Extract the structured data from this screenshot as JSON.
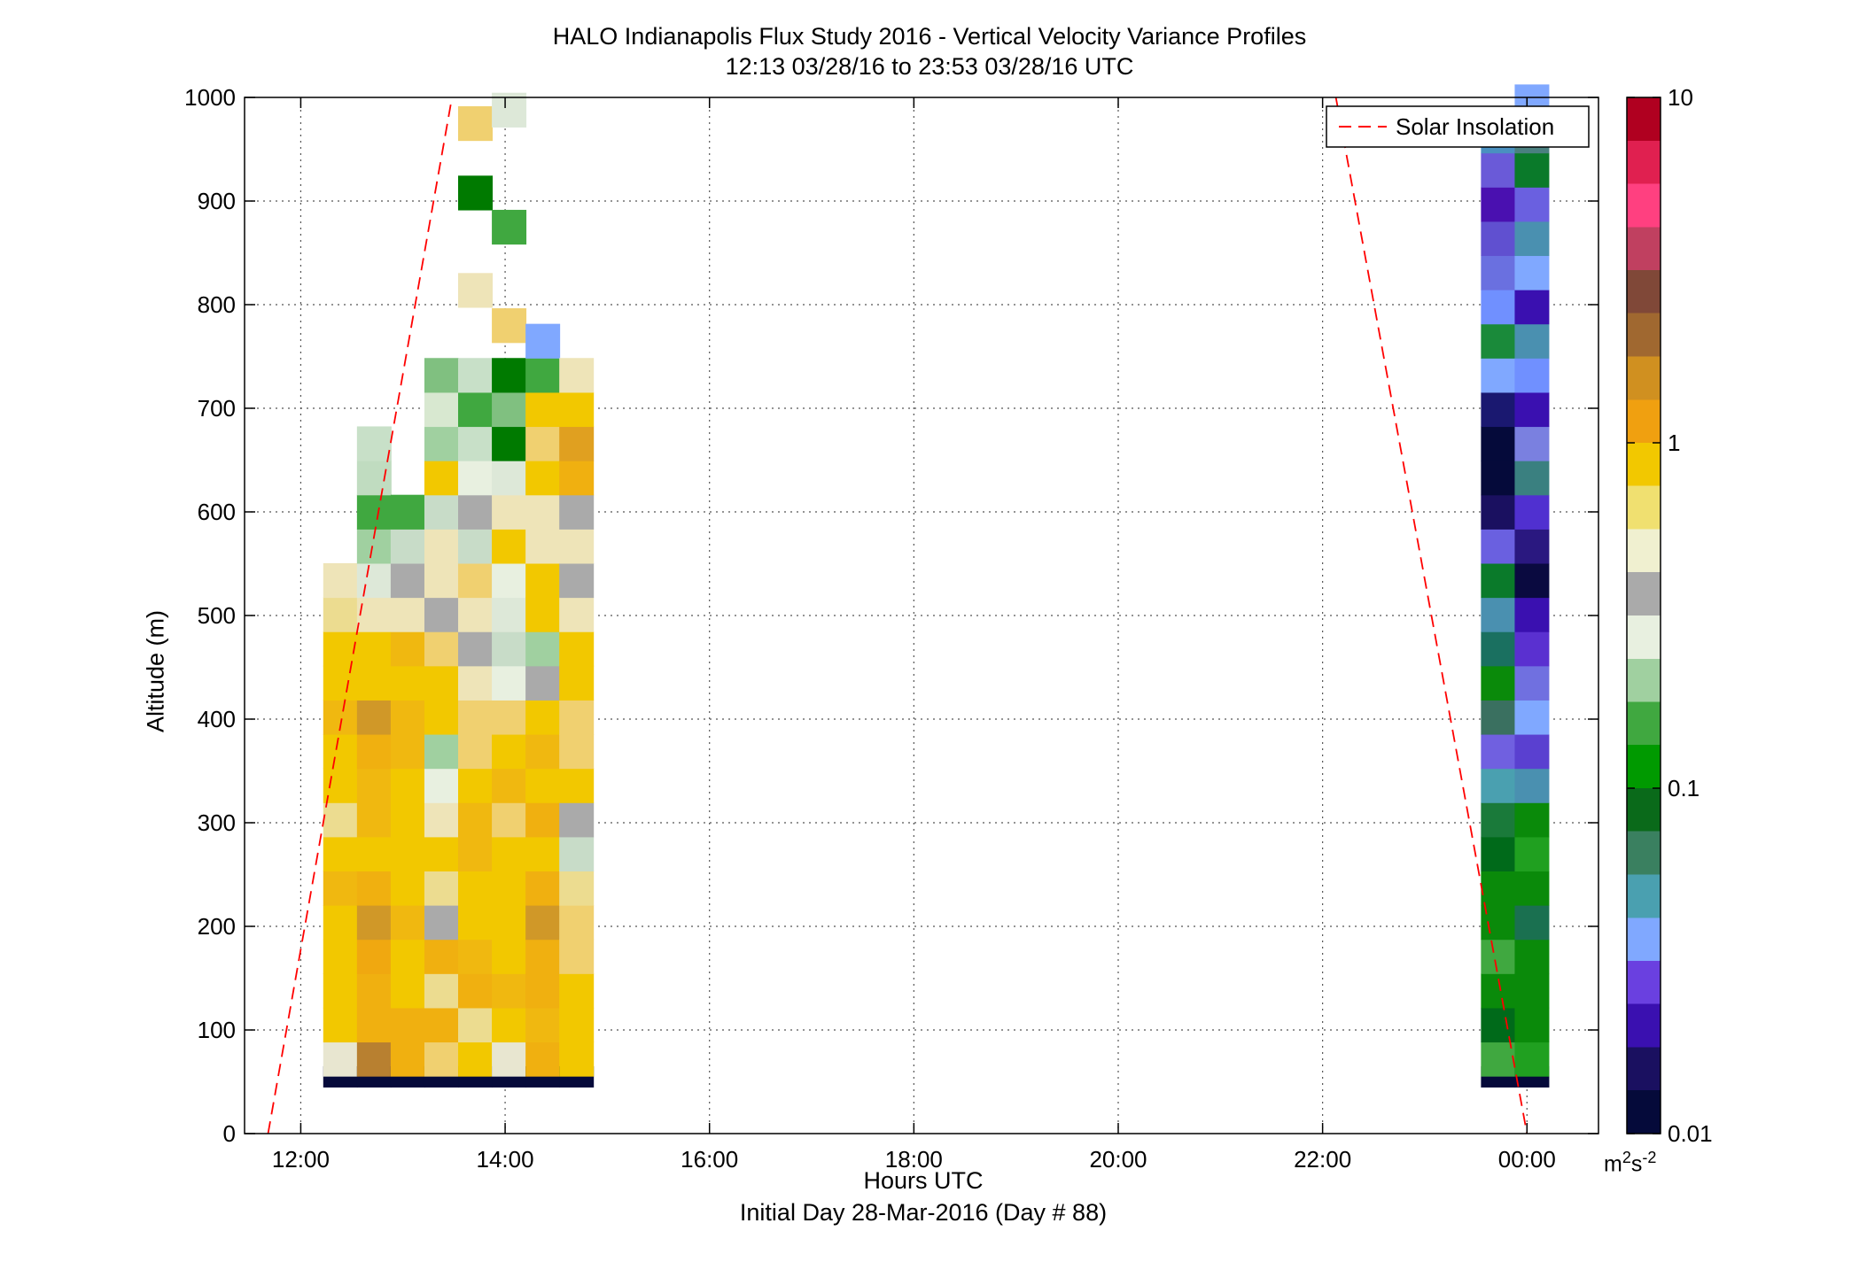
{
  "title": {
    "line1": "HALO Indianapolis Flux Study 2016 - Vertical Velocity Variance Profiles",
    "line2": "12:13 03/28/16 to 23:53 03/28/16  UTC"
  },
  "xlabel": "Hours UTC",
  "sublabel": "Initial Day 28-Mar-2016 (Day # 88)",
  "ylabel": "Altitude (m)",
  "colorbar": {
    "unit_base": "m",
    "unit_exp1": "2",
    "unit_mid": "s",
    "unit_exp2": "-2",
    "ticks": [
      "10",
      "1",
      "0.1",
      "0.01"
    ],
    "scale": "log",
    "range": [
      0.01,
      10
    ],
    "colors": [
      "#050a3a",
      "#1a1060",
      "#3a10b0",
      "#6a40e0",
      "#80a8ff",
      "#4aa0b0",
      "#3a8060",
      "#0a6a1a",
      "#009a00",
      "#40a840",
      "#a0d0a0",
      "#e8f0e0",
      "#aaaaaa",
      "#f0f0d0",
      "#f0e070",
      "#f2c800",
      "#f0a010",
      "#d09020",
      "#a06830",
      "#804838",
      "#c04060",
      "#ff4080",
      "#e02050",
      "#b00020"
    ]
  },
  "chart_data": {
    "type": "heatmap",
    "title": "HALO Indianapolis Flux Study 2016 - Vertical Velocity Variance Profiles",
    "xlabel": "Hours UTC",
    "ylabel": "Altitude (m)",
    "x_ticks": [
      "12:00",
      "14:00",
      "16:00",
      "18:00",
      "20:00",
      "22:00",
      "00:00"
    ],
    "x_tick_hours": [
      12,
      14,
      16,
      18,
      20,
      22,
      24
    ],
    "xlim_hours": [
      11.45,
      24.7
    ],
    "y_ticks": [
      0,
      100,
      200,
      300,
      400,
      500,
      600,
      700,
      800,
      900,
      1000
    ],
    "ylim": [
      0,
      1000
    ],
    "grid": true,
    "legend": {
      "entries": [
        "Solar Insolation"
      ],
      "placement": "top-right",
      "style": "red dashed line"
    },
    "cell_height_m": 33,
    "cell_width_hours": 0.333,
    "columns": [
      {
        "hour": 12.22,
        "cells": [
          [
            55,
            "#050a3a"
          ],
          [
            72,
            "#e8e6d0"
          ],
          [
            105,
            "#f2c800"
          ],
          [
            138,
            "#f2c800"
          ],
          [
            171,
            "#f2c800"
          ],
          [
            204,
            "#f2c800"
          ],
          [
            237,
            "#f0b810"
          ],
          [
            270,
            "#f2c800"
          ],
          [
            303,
            "#ecdc90"
          ],
          [
            336,
            "#f2c800"
          ],
          [
            369,
            "#f2c800"
          ],
          [
            402,
            "#f0b810"
          ],
          [
            435,
            "#f2c800"
          ],
          [
            468,
            "#f2c800"
          ],
          [
            501,
            "#ecdc90"
          ],
          [
            534,
            "#eee4b8"
          ]
        ]
      },
      {
        "hour": 12.55,
        "cells": [
          [
            55,
            "#050a3a"
          ],
          [
            72,
            "#b88030"
          ],
          [
            105,
            "#f0b010"
          ],
          [
            138,
            "#f0b010"
          ],
          [
            171,
            "#f0a810"
          ],
          [
            204,
            "#d09828"
          ],
          [
            237,
            "#f0b010"
          ],
          [
            270,
            "#f2c800"
          ],
          [
            303,
            "#f0b810"
          ],
          [
            336,
            "#f0b810"
          ],
          [
            369,
            "#f0b010"
          ],
          [
            402,
            "#d09828"
          ],
          [
            435,
            "#f2c800"
          ],
          [
            468,
            "#f2c800"
          ],
          [
            501,
            "#eee4b8"
          ],
          [
            534,
            "#dde8d8"
          ],
          [
            567,
            "#a0d0a0"
          ],
          [
            600,
            "#40a840"
          ],
          [
            633,
            "#c0dcc0"
          ],
          [
            666,
            "#c8e0c8"
          ]
        ]
      },
      {
        "hour": 12.88,
        "cells": [
          [
            55,
            "#050a3a"
          ],
          [
            72,
            "#f0b010"
          ],
          [
            105,
            "#f0b010"
          ],
          [
            138,
            "#f2c800"
          ],
          [
            171,
            "#f2c800"
          ],
          [
            204,
            "#f0b810"
          ],
          [
            237,
            "#f2c800"
          ],
          [
            270,
            "#f2c800"
          ],
          [
            303,
            "#f2c800"
          ],
          [
            336,
            "#f2c800"
          ],
          [
            369,
            "#f0b810"
          ],
          [
            402,
            "#f0b810"
          ],
          [
            435,
            "#f2c800"
          ],
          [
            468,
            "#f0b810"
          ],
          [
            501,
            "#eee4b8"
          ],
          [
            534,
            "#aaaaaa"
          ],
          [
            567,
            "#c8dcc8"
          ],
          [
            600,
            "#40a840"
          ]
        ]
      },
      {
        "hour": 13.21,
        "cells": [
          [
            55,
            "#050a3a"
          ],
          [
            72,
            "#f0d070"
          ],
          [
            105,
            "#f0b010"
          ],
          [
            138,
            "#ecdc90"
          ],
          [
            171,
            "#f0b010"
          ],
          [
            204,
            "#aaaaaa"
          ],
          [
            237,
            "#ecdc90"
          ],
          [
            270,
            "#f2c800"
          ],
          [
            303,
            "#eee4b8"
          ],
          [
            336,
            "#e8f0e0"
          ],
          [
            369,
            "#a0d0a0"
          ],
          [
            402,
            "#f2c800"
          ],
          [
            435,
            "#f2c800"
          ],
          [
            468,
            "#f0d070"
          ],
          [
            501,
            "#aaaaaa"
          ],
          [
            534,
            "#eee4b8"
          ],
          [
            567,
            "#eee4b8"
          ],
          [
            600,
            "#c8dcc8"
          ],
          [
            633,
            "#f2c800"
          ],
          [
            666,
            "#a0d0a0"
          ],
          [
            699,
            "#d8e8d0"
          ],
          [
            732,
            "#80c080"
          ]
        ]
      },
      {
        "hour": 13.54,
        "cells": [
          [
            55,
            "#050a3a"
          ],
          [
            72,
            "#f2c800"
          ],
          [
            105,
            "#ecdc90"
          ],
          [
            138,
            "#f0b010"
          ],
          [
            171,
            "#f0b810"
          ],
          [
            204,
            "#f2c800"
          ],
          [
            237,
            "#f2c800"
          ],
          [
            270,
            "#f0b810"
          ],
          [
            303,
            "#f0b810"
          ],
          [
            336,
            "#f2c800"
          ],
          [
            369,
            "#f0d070"
          ],
          [
            402,
            "#f0d070"
          ],
          [
            435,
            "#eee4b8"
          ],
          [
            468,
            "#aaaaaa"
          ],
          [
            501,
            "#eee4b8"
          ],
          [
            534,
            "#f0d070"
          ],
          [
            567,
            "#c8dcc8"
          ],
          [
            600,
            "#aaaaaa"
          ],
          [
            633,
            "#e8f0e0"
          ],
          [
            666,
            "#c8e0c8"
          ],
          [
            699,
            "#40a840"
          ],
          [
            732,
            "#c8e0c8"
          ],
          [
            814,
            "#eee4b8"
          ],
          [
            908,
            "#007a00"
          ],
          [
            975,
            "#f0d070"
          ]
        ]
      },
      {
        "hour": 13.87,
        "cells": [
          [
            55,
            "#050a3a"
          ],
          [
            72,
            "#e8e6d0"
          ],
          [
            105,
            "#f2c800"
          ],
          [
            138,
            "#f0b810"
          ],
          [
            171,
            "#f2c800"
          ],
          [
            204,
            "#f2c800"
          ],
          [
            237,
            "#f2c800"
          ],
          [
            270,
            "#f2c800"
          ],
          [
            303,
            "#f0d070"
          ],
          [
            336,
            "#f0b810"
          ],
          [
            369,
            "#f2c800"
          ],
          [
            402,
            "#f0d070"
          ],
          [
            435,
            "#e8f0e0"
          ],
          [
            468,
            "#c8dcc8"
          ],
          [
            501,
            "#dde8d8"
          ],
          [
            534,
            "#e8f0e0"
          ],
          [
            567,
            "#f2c800"
          ],
          [
            600,
            "#eee4b8"
          ],
          [
            633,
            "#dde8d8"
          ],
          [
            666,
            "#007a00"
          ],
          [
            699,
            "#80c080"
          ],
          [
            732,
            "#007a00"
          ],
          [
            780,
            "#f0d070"
          ],
          [
            875,
            "#40a840"
          ],
          [
            988,
            "#dde8d8"
          ]
        ]
      },
      {
        "hour": 14.2,
        "cells": [
          [
            55,
            "#050a3a"
          ],
          [
            72,
            "#f0b010"
          ],
          [
            105,
            "#f0b810"
          ],
          [
            138,
            "#f0b010"
          ],
          [
            171,
            "#f0b010"
          ],
          [
            204,
            "#d09828"
          ],
          [
            237,
            "#f0b010"
          ],
          [
            270,
            "#f2c800"
          ],
          [
            303,
            "#f0b010"
          ],
          [
            336,
            "#f2c800"
          ],
          [
            369,
            "#f0b810"
          ],
          [
            402,
            "#f2c800"
          ],
          [
            435,
            "#aaaaaa"
          ],
          [
            468,
            "#a0d0a0"
          ],
          [
            501,
            "#f2c800"
          ],
          [
            534,
            "#f2c800"
          ],
          [
            567,
            "#eee4b8"
          ],
          [
            600,
            "#eee4b8"
          ],
          [
            633,
            "#f2c800"
          ],
          [
            666,
            "#f0d070"
          ],
          [
            699,
            "#f2c800"
          ],
          [
            732,
            "#40a840"
          ],
          [
            765,
            "#80a8ff"
          ]
        ]
      },
      {
        "hour": 14.53,
        "cells": [
          [
            55,
            "#050a3a"
          ],
          [
            72,
            "#f2c800"
          ],
          [
            105,
            "#f2c800"
          ],
          [
            138,
            "#f2c800"
          ],
          [
            171,
            "#f0d070"
          ],
          [
            204,
            "#f0d070"
          ],
          [
            237,
            "#ecdc90"
          ],
          [
            270,
            "#c8dcc8"
          ],
          [
            303,
            "#aaaaaa"
          ],
          [
            336,
            "#f2c800"
          ],
          [
            369,
            "#f0d070"
          ],
          [
            402,
            "#f0d070"
          ],
          [
            435,
            "#f2c800"
          ],
          [
            468,
            "#f2c800"
          ],
          [
            501,
            "#eee4b8"
          ],
          [
            534,
            "#aaaaaa"
          ],
          [
            567,
            "#eee4b8"
          ],
          [
            600,
            "#aaaaaa"
          ],
          [
            633,
            "#f0b010"
          ],
          [
            666,
            "#e0a020"
          ],
          [
            699,
            "#f2c800"
          ],
          [
            732,
            "#eee4b8"
          ]
        ]
      },
      {
        "hour": 23.55,
        "cells": [
          [
            55,
            "#050a3a"
          ],
          [
            72,
            "#40a840"
          ],
          [
            105,
            "#006a1a"
          ],
          [
            138,
            "#0a8a0a"
          ],
          [
            171,
            "#40a840"
          ],
          [
            204,
            "#0a8a0a"
          ],
          [
            237,
            "#0a8a0a"
          ],
          [
            270,
            "#006a1a"
          ],
          [
            303,
            "#1a7a3a"
          ],
          [
            336,
            "#4aa0b0"
          ],
          [
            369,
            "#7060e0"
          ],
          [
            402,
            "#3a7060"
          ],
          [
            435,
            "#0a8a0a"
          ],
          [
            468,
            "#1a7060"
          ],
          [
            501,
            "#4a90b0"
          ],
          [
            534,
            "#0a7a2a"
          ],
          [
            567,
            "#6a60e0"
          ],
          [
            600,
            "#1a1060"
          ],
          [
            633,
            "#050a3a"
          ],
          [
            666,
            "#050a3a"
          ],
          [
            699,
            "#1a1870"
          ],
          [
            732,
            "#80a8ff"
          ],
          [
            765,
            "#1a8a3a"
          ],
          [
            798,
            "#7090ff"
          ],
          [
            831,
            "#6a70e0"
          ],
          [
            864,
            "#6050d0"
          ],
          [
            897,
            "#4a10b0"
          ],
          [
            930,
            "#6a5ad8"
          ],
          [
            963,
            "#4a90c0"
          ]
        ]
      },
      {
        "hour": 23.88,
        "cells": [
          [
            55,
            "#050a3a"
          ],
          [
            72,
            "#20a020"
          ],
          [
            105,
            "#0a8a0a"
          ],
          [
            138,
            "#0a8a0a"
          ],
          [
            171,
            "#0a8a0a"
          ],
          [
            204,
            "#1a7050"
          ],
          [
            237,
            "#0a8a0a"
          ],
          [
            270,
            "#20a020"
          ],
          [
            303,
            "#0a8a0a"
          ],
          [
            336,
            "#4a90b0"
          ],
          [
            369,
            "#5a40d0"
          ],
          [
            402,
            "#80a8ff"
          ],
          [
            435,
            "#7070e0"
          ],
          [
            468,
            "#5a30d0"
          ],
          [
            501,
            "#3a10b0"
          ],
          [
            534,
            "#0a0a40"
          ],
          [
            567,
            "#2a1880"
          ],
          [
            600,
            "#5030d0"
          ],
          [
            633,
            "#3a8080"
          ],
          [
            666,
            "#7a80e0"
          ],
          [
            699,
            "#3a10b0"
          ],
          [
            732,
            "#7090ff"
          ],
          [
            765,
            "#4a90b0"
          ],
          [
            798,
            "#3a10b0"
          ],
          [
            831,
            "#80a8ff"
          ],
          [
            864,
            "#4a90b0"
          ],
          [
            897,
            "#6a60e0"
          ],
          [
            930,
            "#0a7a2a"
          ],
          [
            963,
            "#4a8080"
          ],
          [
            996,
            "#80a8ff"
          ]
        ]
      }
    ],
    "series": [
      {
        "name": "Solar Insolation",
        "style": "dashed",
        "color": "#ff0000",
        "segments": [
          [
            [
              11.68,
              0
            ],
            [
              13.48,
              1000
            ]
          ],
          [
            [
              22.13,
              1000
            ],
            [
              24.0,
              0
            ]
          ]
        ]
      }
    ]
  }
}
